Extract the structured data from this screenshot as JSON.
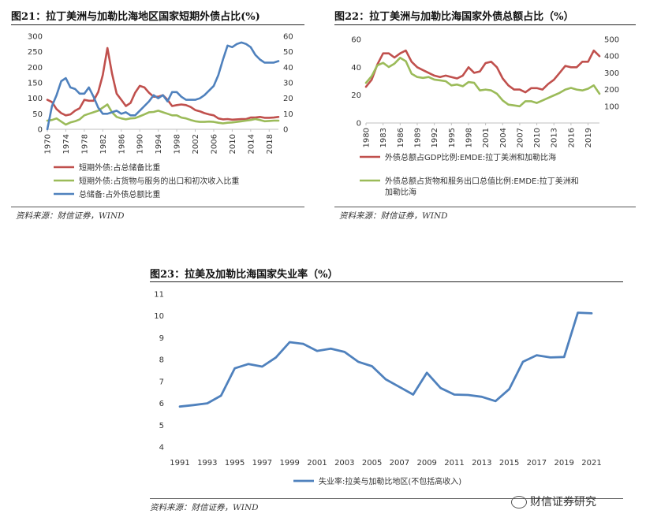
{
  "chart_data": [
    {
      "type": "line",
      "title": "图21：拉丁美洲与加勒比海地区国家短期外债占比(%)",
      "source": "资料来源：财信证券，WIND",
      "x_tick_labels": [
        "1970",
        "1974",
        "1978",
        "1982",
        "1986",
        "1990",
        "1994",
        "1998",
        "2002",
        "2006",
        "2010",
        "2014",
        "2018"
      ],
      "xlim": [
        1970,
        2020
      ],
      "ylim_left": [
        0,
        300
      ],
      "yticks_left": [
        0,
        50,
        100,
        150,
        200,
        250,
        300
      ],
      "ylim_right": [
        0,
        60
      ],
      "yticks_right": [
        0,
        10,
        20,
        30,
        40,
        50,
        60
      ],
      "series": [
        {
          "name": "短期外债:占总储备比重",
          "color": "#C0504D",
          "axis": "left",
          "x": [
            1970,
            1971,
            1972,
            1973,
            1974,
            1975,
            1976,
            1977,
            1978,
            1979,
            1980,
            1981,
            1982,
            1983,
            1984,
            1985,
            1986,
            1987,
            1988,
            1989,
            1990,
            1991,
            1992,
            1993,
            1994,
            1995,
            1996,
            1997,
            1998,
            1999,
            2000,
            2001,
            2002,
            2003,
            2004,
            2005,
            2006,
            2007,
            2008,
            2009,
            2010,
            2011,
            2012,
            2013,
            2014,
            2015,
            2016,
            2017,
            2018,
            2019,
            2020
          ],
          "values": [
            95,
            88,
            65,
            52,
            45,
            48,
            60,
            68,
            95,
            92,
            92,
            120,
            175,
            262,
            180,
            115,
            95,
            75,
            85,
            118,
            140,
            135,
            118,
            105,
            105,
            110,
            95,
            75,
            78,
            80,
            78,
            72,
            62,
            58,
            52,
            48,
            45,
            35,
            32,
            33,
            31,
            32,
            33,
            33,
            38,
            38,
            40,
            37,
            37,
            38,
            40
          ]
        },
        {
          "name": "短期外债:占货物与服务的出口和初次收入比重",
          "color": "#9BBB59",
          "axis": "left",
          "x": [
            1970,
            1971,
            1972,
            1973,
            1974,
            1975,
            1976,
            1977,
            1978,
            1979,
            1980,
            1981,
            1982,
            1983,
            1984,
            1985,
            1986,
            1987,
            1988,
            1989,
            1990,
            1991,
            1992,
            1993,
            1994,
            1995,
            1996,
            1997,
            1998,
            1999,
            2000,
            2001,
            2002,
            2003,
            2004,
            2005,
            2006,
            2007,
            2008,
            2009,
            2010,
            2011,
            2012,
            2013,
            2014,
            2015,
            2016,
            2017,
            2018,
            2019,
            2020
          ],
          "values": [
            28,
            30,
            35,
            25,
            15,
            22,
            26,
            32,
            45,
            50,
            55,
            60,
            70,
            80,
            55,
            40,
            35,
            32,
            35,
            36,
            42,
            48,
            55,
            56,
            60,
            55,
            50,
            45,
            45,
            38,
            35,
            30,
            26,
            24,
            24,
            25,
            24,
            21,
            19,
            21,
            22,
            24,
            26,
            28,
            30,
            33,
            30,
            26,
            27,
            28,
            28
          ]
        },
        {
          "name": "总储备:占外债总额比重",
          "color": "#4F81BD",
          "axis": "right",
          "x": [
            1970,
            1971,
            1972,
            1973,
            1974,
            1975,
            1976,
            1977,
            1978,
            1979,
            1980,
            1981,
            1982,
            1983,
            1984,
            1985,
            1986,
            1987,
            1988,
            1989,
            1990,
            1991,
            1992,
            1993,
            1994,
            1995,
            1996,
            1997,
            1998,
            1999,
            2000,
            2001,
            2002,
            2003,
            2004,
            2005,
            2006,
            2007,
            2008,
            2009,
            2010,
            2011,
            2012,
            2013,
            2014,
            2015,
            2016,
            2017,
            2018,
            2019,
            2020
          ],
          "values": [
            0,
            15,
            22,
            31,
            33,
            27,
            26,
            23,
            23,
            27,
            21,
            14,
            10,
            10,
            11,
            12,
            10,
            11,
            9,
            9,
            12,
            15,
            18,
            22,
            20,
            22,
            18,
            24,
            24,
            21,
            19,
            19,
            19,
            20,
            22,
            25,
            28,
            35,
            45,
            54,
            53,
            55,
            56,
            55,
            53,
            48,
            45,
            43,
            43,
            43,
            44
          ]
        }
      ]
    },
    {
      "type": "line",
      "title": "图22：拉丁美洲与加勒比海国家外债总额占比（%）",
      "source": "资料来源：财信证券，WIND",
      "x_tick_labels": [
        "1980",
        "1983",
        "1986",
        "1989",
        "1992",
        "1995",
        "1998",
        "2001",
        "2004",
        "2007",
        "2010",
        "2013",
        "2016",
        "2019"
      ],
      "xlim": [
        1980,
        2021
      ],
      "ylim_left": [
        0,
        60
      ],
      "yticks_left": [
        0,
        20,
        40,
        60
      ],
      "ylim_right": [
        0,
        500
      ],
      "yticks_right": [
        100,
        200,
        300,
        400,
        500
      ],
      "series": [
        {
          "name": "外债总额占GDP比例:EMDE:拉丁美洲和加勒比海",
          "color": "#C0504D",
          "axis": "left",
          "x": [
            1980,
            1981,
            1982,
            1983,
            1984,
            1985,
            1986,
            1987,
            1988,
            1989,
            1990,
            1991,
            1992,
            1993,
            1994,
            1995,
            1996,
            1997,
            1998,
            1999,
            2000,
            2001,
            2002,
            2003,
            2004,
            2005,
            2006,
            2007,
            2008,
            2009,
            2010,
            2011,
            2012,
            2013,
            2014,
            2015,
            2016,
            2017,
            2018,
            2019,
            2020,
            2021
          ],
          "values": [
            26,
            31,
            42,
            50,
            50,
            47,
            50,
            52,
            44,
            40,
            38,
            36,
            34,
            33,
            34,
            33,
            32,
            34,
            40,
            36,
            37,
            43,
            44,
            40,
            32,
            27,
            24,
            24,
            22,
            25,
            25,
            24,
            28,
            31,
            36,
            41,
            40,
            40,
            44,
            44,
            52,
            48
          ]
        },
        {
          "name": "外债总额占货物和服务出口总值比例:EMDE:拉丁美洲和加勒比海",
          "color": "#9BBB59",
          "axis": "right",
          "x": [
            1980,
            1981,
            1982,
            1983,
            1984,
            1985,
            1986,
            1987,
            1988,
            1989,
            1990,
            1991,
            1992,
            1993,
            1994,
            1995,
            1996,
            1997,
            1998,
            1999,
            2000,
            2001,
            2002,
            2003,
            2004,
            2005,
            2006,
            2007,
            2008,
            2009,
            2010,
            2011,
            2012,
            2013,
            2014,
            2015,
            2016,
            2017,
            2018,
            2019,
            2020,
            2021
          ],
          "values": [
            240,
            280,
            345,
            360,
            335,
            355,
            390,
            370,
            295,
            275,
            270,
            275,
            260,
            255,
            250,
            225,
            230,
            220,
            245,
            240,
            195,
            200,
            195,
            175,
            135,
            110,
            105,
            100,
            130,
            130,
            120,
            135,
            150,
            165,
            180,
            200,
            210,
            200,
            195,
            205,
            225,
            175
          ]
        }
      ]
    },
    {
      "type": "line",
      "title": "图23：拉美及加勒比海国家失业率（%）",
      "source": "资料来源：财信证券，WIND",
      "x_tick_labels": [
        "1991",
        "1993",
        "1995",
        "1997",
        "1999",
        "2001",
        "2003",
        "2005",
        "2007",
        "2009",
        "2011",
        "2013",
        "2015",
        "2017",
        "2019",
        "2021"
      ],
      "xlim": [
        1991,
        2021
      ],
      "ylim": [
        4,
        11
      ],
      "yticks": [
        4,
        5,
        6,
        7,
        8,
        9,
        10,
        11
      ],
      "series": [
        {
          "name": "失业率:拉美与加勒比地区(不包括高收入)",
          "color": "#4F81BD",
          "x": [
            1991,
            1992,
            1993,
            1994,
            1995,
            1996,
            1997,
            1998,
            1999,
            2000,
            2001,
            2002,
            2003,
            2004,
            2005,
            2006,
            2007,
            2008,
            2009,
            2010,
            2011,
            2012,
            2013,
            2014,
            2015,
            2016,
            2017,
            2018,
            2019,
            2020,
            2021
          ],
          "values": [
            5.85,
            5.92,
            6.0,
            6.35,
            7.6,
            7.8,
            7.68,
            8.1,
            8.8,
            8.72,
            8.4,
            8.5,
            8.35,
            7.9,
            7.7,
            7.1,
            6.75,
            6.4,
            7.4,
            6.7,
            6.4,
            6.38,
            6.3,
            6.1,
            6.65,
            7.9,
            8.2,
            8.1,
            8.12,
            10.15,
            10.12
          ]
        }
      ]
    }
  ],
  "watermark": "财信证券研究",
  "colors": {
    "red": "#C0504D",
    "green": "#9BBB59",
    "blue": "#4F81BD"
  }
}
